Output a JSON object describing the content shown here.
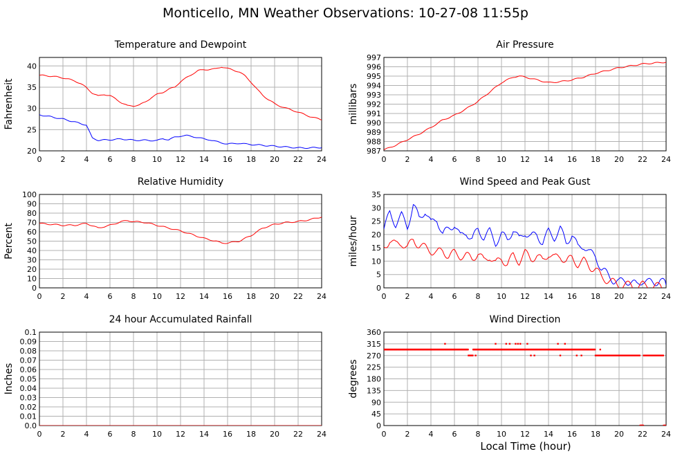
{
  "title": "Monticello, MN Weather Observations: 10-27-08 11:55p",
  "xlabel_main": "Local Time (hour)",
  "colors": {
    "red": "#ff0000",
    "blue": "#0000ff",
    "grid": "#b0b0b0"
  },
  "chart_data": [
    {
      "id": "temp",
      "type": "line",
      "title": "Temperature and Dewpoint",
      "ylabel": "Fahrenheit",
      "xlim": [
        0,
        24
      ],
      "ylim": [
        20,
        42
      ],
      "xticks": [
        0,
        2,
        4,
        6,
        8,
        10,
        12,
        14,
        16,
        18,
        20,
        22,
        24
      ],
      "yticks": [
        20,
        25,
        30,
        35,
        40
      ],
      "series": [
        {
          "color": "#ff0000",
          "x": [
            0,
            1,
            2,
            3,
            3.5,
            4,
            4.5,
            5,
            5.5,
            6,
            6.5,
            7,
            7.5,
            8,
            8.5,
            9,
            9.5,
            10,
            10.5,
            11,
            11.5,
            12,
            12.5,
            13,
            13.5,
            14,
            14.5,
            15,
            15.5,
            16,
            16.5,
            17,
            17.5,
            18,
            18.5,
            19,
            19.5,
            20,
            20.5,
            21,
            21.5,
            22,
            22.5,
            23,
            23.5,
            24
          ],
          "y": [
            37.8,
            37.6,
            37.2,
            36.5,
            35.8,
            34.9,
            33.6,
            32.9,
            33.3,
            33.0,
            32.2,
            31.3,
            30.6,
            30.6,
            30.8,
            31.5,
            32.5,
            33.3,
            33.8,
            34.5,
            35.0,
            36.3,
            37.2,
            38.1,
            38.9,
            39.1,
            39.2,
            39.3,
            39.8,
            39.4,
            39.0,
            38.6,
            37.6,
            36.2,
            34.5,
            33.1,
            32.0,
            31.1,
            30.5,
            30.0,
            29.6,
            29.1,
            28.6,
            28.1,
            27.7,
            27.3
          ]
        },
        {
          "color": "#0000ff",
          "x": [
            0,
            1,
            2,
            3,
            3.5,
            4,
            4.2,
            4.5,
            5,
            6,
            7,
            8,
            9,
            10,
            10.5,
            11,
            11.5,
            12,
            12.5,
            13,
            13.5,
            14,
            14.5,
            15,
            15.5,
            16,
            16.5,
            17,
            17.5,
            18,
            19,
            20,
            21,
            22,
            23,
            24
          ],
          "y": [
            28.5,
            28.0,
            27.5,
            26.8,
            26.4,
            26.1,
            24.8,
            23.0,
            22.5,
            22.6,
            22.8,
            22.5,
            22.5,
            22.4,
            22.9,
            22.6,
            23.2,
            23.5,
            23.6,
            23.4,
            23.1,
            22.8,
            22.6,
            22.2,
            21.9,
            21.6,
            21.7,
            21.8,
            21.6,
            21.5,
            21.3,
            21.1,
            20.9,
            20.7,
            20.7,
            20.8
          ]
        }
      ]
    },
    {
      "id": "pressure",
      "type": "line",
      "title": "Air Pressure",
      "ylabel": "millibars",
      "xlim": [
        0,
        24
      ],
      "ylim": [
        987,
        997
      ],
      "xticks": [
        0,
        2,
        4,
        6,
        8,
        10,
        12,
        14,
        16,
        18,
        20,
        22,
        24
      ],
      "yticks": [
        987,
        988,
        989,
        990,
        991,
        992,
        993,
        994,
        995,
        996,
        997
      ],
      "series": [
        {
          "color": "#ff0000",
          "x": [
            0,
            1,
            2,
            3,
            4,
            5,
            6,
            7,
            8,
            9,
            10,
            11,
            11.5,
            12,
            13,
            14,
            15,
            16,
            17,
            18,
            19,
            20,
            21,
            22,
            23,
            24
          ],
          "y": [
            987.1,
            987.6,
            988.2,
            988.8,
            989.5,
            990.3,
            990.8,
            991.5,
            992.3,
            993.3,
            994.3,
            994.9,
            995.0,
            994.9,
            994.6,
            994.3,
            994.4,
            994.6,
            994.9,
            995.3,
            995.6,
            995.9,
            996.1,
            996.3,
            996.4,
            996.5
          ]
        }
      ]
    },
    {
      "id": "humidity",
      "type": "line",
      "title": "Relative Humidity",
      "ylabel": "Percent",
      "xlim": [
        0,
        24
      ],
      "ylim": [
        0,
        100
      ],
      "xticks": [
        0,
        2,
        4,
        6,
        8,
        10,
        12,
        14,
        16,
        18,
        20,
        22,
        24
      ],
      "yticks": [
        0,
        10,
        20,
        30,
        40,
        50,
        60,
        70,
        80,
        90,
        100
      ],
      "series": [
        {
          "color": "#ff0000",
          "x": [
            0,
            1,
            2,
            3,
            4,
            5,
            6,
            7,
            7.5,
            8,
            9,
            10,
            11,
            12,
            13,
            14,
            15,
            15.5,
            16,
            17,
            18,
            19,
            20,
            21,
            22,
            23,
            24
          ],
          "y": [
            69,
            68,
            67,
            67,
            69,
            64,
            67,
            71,
            72,
            71,
            70,
            67,
            64,
            61,
            57,
            53,
            50,
            48,
            48,
            50,
            56,
            64,
            68,
            70,
            71,
            73,
            76
          ]
        }
      ]
    },
    {
      "id": "wind",
      "type": "line",
      "title": "Wind Speed and Peak Gust",
      "ylabel": "miles/hour",
      "xlim": [
        0,
        24
      ],
      "ylim": [
        0,
        35
      ],
      "xticks": [
        0,
        2,
        4,
        6,
        8,
        10,
        12,
        14,
        16,
        18,
        20,
        22,
        24
      ],
      "yticks": [
        0,
        5,
        10,
        15,
        20,
        25,
        30,
        35
      ],
      "series": [
        {
          "color": "#0000ff",
          "x": [
            0,
            0.5,
            1,
            1.5,
            2,
            2.5,
            3,
            3.5,
            4,
            4.5,
            5,
            5.5,
            6,
            6.5,
            7,
            7.5,
            8,
            8.5,
            9,
            9.5,
            10,
            10.5,
            11,
            11.5,
            12,
            12.5,
            13,
            13.5,
            14,
            14.5,
            15,
            15.5,
            16,
            16.5,
            17,
            17.5,
            18,
            18.5,
            19,
            19.5,
            20,
            20.5,
            21,
            21.5,
            22,
            22.5,
            23,
            23.5,
            24
          ],
          "y": [
            22,
            28,
            24,
            27,
            23,
            31,
            26,
            29,
            24,
            26,
            20,
            22,
            24,
            19,
            21,
            18,
            22,
            19,
            21,
            17,
            20,
            18,
            22,
            18,
            21,
            19,
            20,
            17,
            21,
            19,
            22,
            17,
            20,
            15,
            16,
            13,
            12,
            7,
            5,
            3,
            2,
            3,
            2,
            1,
            3,
            2,
            2,
            3,
            1
          ]
        },
        {
          "color": "#ff0000",
          "x": [
            0,
            0.5,
            1,
            1.5,
            2,
            2.5,
            3,
            3.5,
            4,
            4.5,
            5,
            5.5,
            6,
            6.5,
            7,
            7.5,
            8,
            8.5,
            9,
            9.5,
            10,
            10.5,
            11,
            11.5,
            12,
            12.5,
            13,
            13.5,
            14,
            14.5,
            15,
            15.5,
            16,
            16.5,
            17,
            17.5,
            18,
            18.5,
            19,
            19.5,
            20,
            20.5,
            21,
            21.5,
            22,
            22.5,
            23,
            23.5,
            24
          ],
          "y": [
            15,
            18,
            16,
            17,
            15,
            18,
            16,
            15,
            14,
            13,
            14,
            12,
            13,
            12,
            12,
            11,
            13,
            10,
            12,
            9,
            11,
            9,
            12,
            10,
            13,
            11,
            12,
            10,
            13,
            11,
            12,
            10,
            11,
            9,
            10,
            8,
            7,
            4,
            3,
            2,
            1,
            1,
            1,
            0,
            1,
            1,
            0,
            1,
            0
          ]
        }
      ]
    },
    {
      "id": "rain",
      "type": "line",
      "title": "24 hour Accumulated Rainfall",
      "ylabel": "Inches",
      "xlim": [
        0,
        24
      ],
      "ylim": [
        0,
        0.1
      ],
      "xticks": [
        0,
        2,
        4,
        6,
        8,
        10,
        12,
        14,
        16,
        18,
        20,
        22,
        24
      ],
      "yticks": [
        0,
        0.01,
        0.02,
        0.03,
        0.04,
        0.05,
        0.06,
        0.07,
        0.08,
        0.09,
        0.1
      ],
      "ytick_labels": [
        "0.0",
        "0.01",
        "0.02",
        "0.03",
        "0.04",
        "0.05",
        "0.06",
        "0.07",
        "0.08",
        "0.09",
        "0.1"
      ],
      "series": [
        {
          "color": "#ff0000",
          "x": [
            0,
            24
          ],
          "y": [
            0,
            0
          ]
        }
      ]
    },
    {
      "id": "direction",
      "type": "scatter",
      "title": "Wind Direction",
      "ylabel": "degrees",
      "xlim": [
        0,
        24
      ],
      "ylim": [
        0,
        360
      ],
      "xticks": [
        0,
        2,
        4,
        6,
        8,
        10,
        12,
        14,
        16,
        18,
        20,
        22,
        24
      ],
      "yticks": [
        0,
        45,
        90,
        135,
        180,
        225,
        270,
        315,
        360
      ],
      "series": [
        {
          "color": "#ff0000",
          "base_segments": [
            [
              0,
              7.2,
              293
            ],
            [
              7.2,
              7.6,
              270
            ],
            [
              7.6,
              18.0,
              293
            ],
            [
              18.0,
              21.8,
              270
            ],
            [
              21.8,
              22.1,
              0
            ],
            [
              22.1,
              23.8,
              270
            ],
            [
              23.8,
              24,
              0
            ]
          ],
          "extra_points": [
            [
              5.2,
              315
            ],
            [
              7.5,
              270
            ],
            [
              7.8,
              270
            ],
            [
              9.5,
              315
            ],
            [
              10.4,
              315
            ],
            [
              10.7,
              315
            ],
            [
              11.2,
              315
            ],
            [
              11.4,
              315
            ],
            [
              11.6,
              315
            ],
            [
              12.2,
              315
            ],
            [
              12.5,
              270
            ],
            [
              12.8,
              270
            ],
            [
              14.8,
              315
            ],
            [
              15.0,
              270
            ],
            [
              15.4,
              315
            ],
            [
              16.4,
              270
            ],
            [
              16.8,
              270
            ],
            [
              18.4,
              293
            ]
          ]
        }
      ]
    }
  ]
}
